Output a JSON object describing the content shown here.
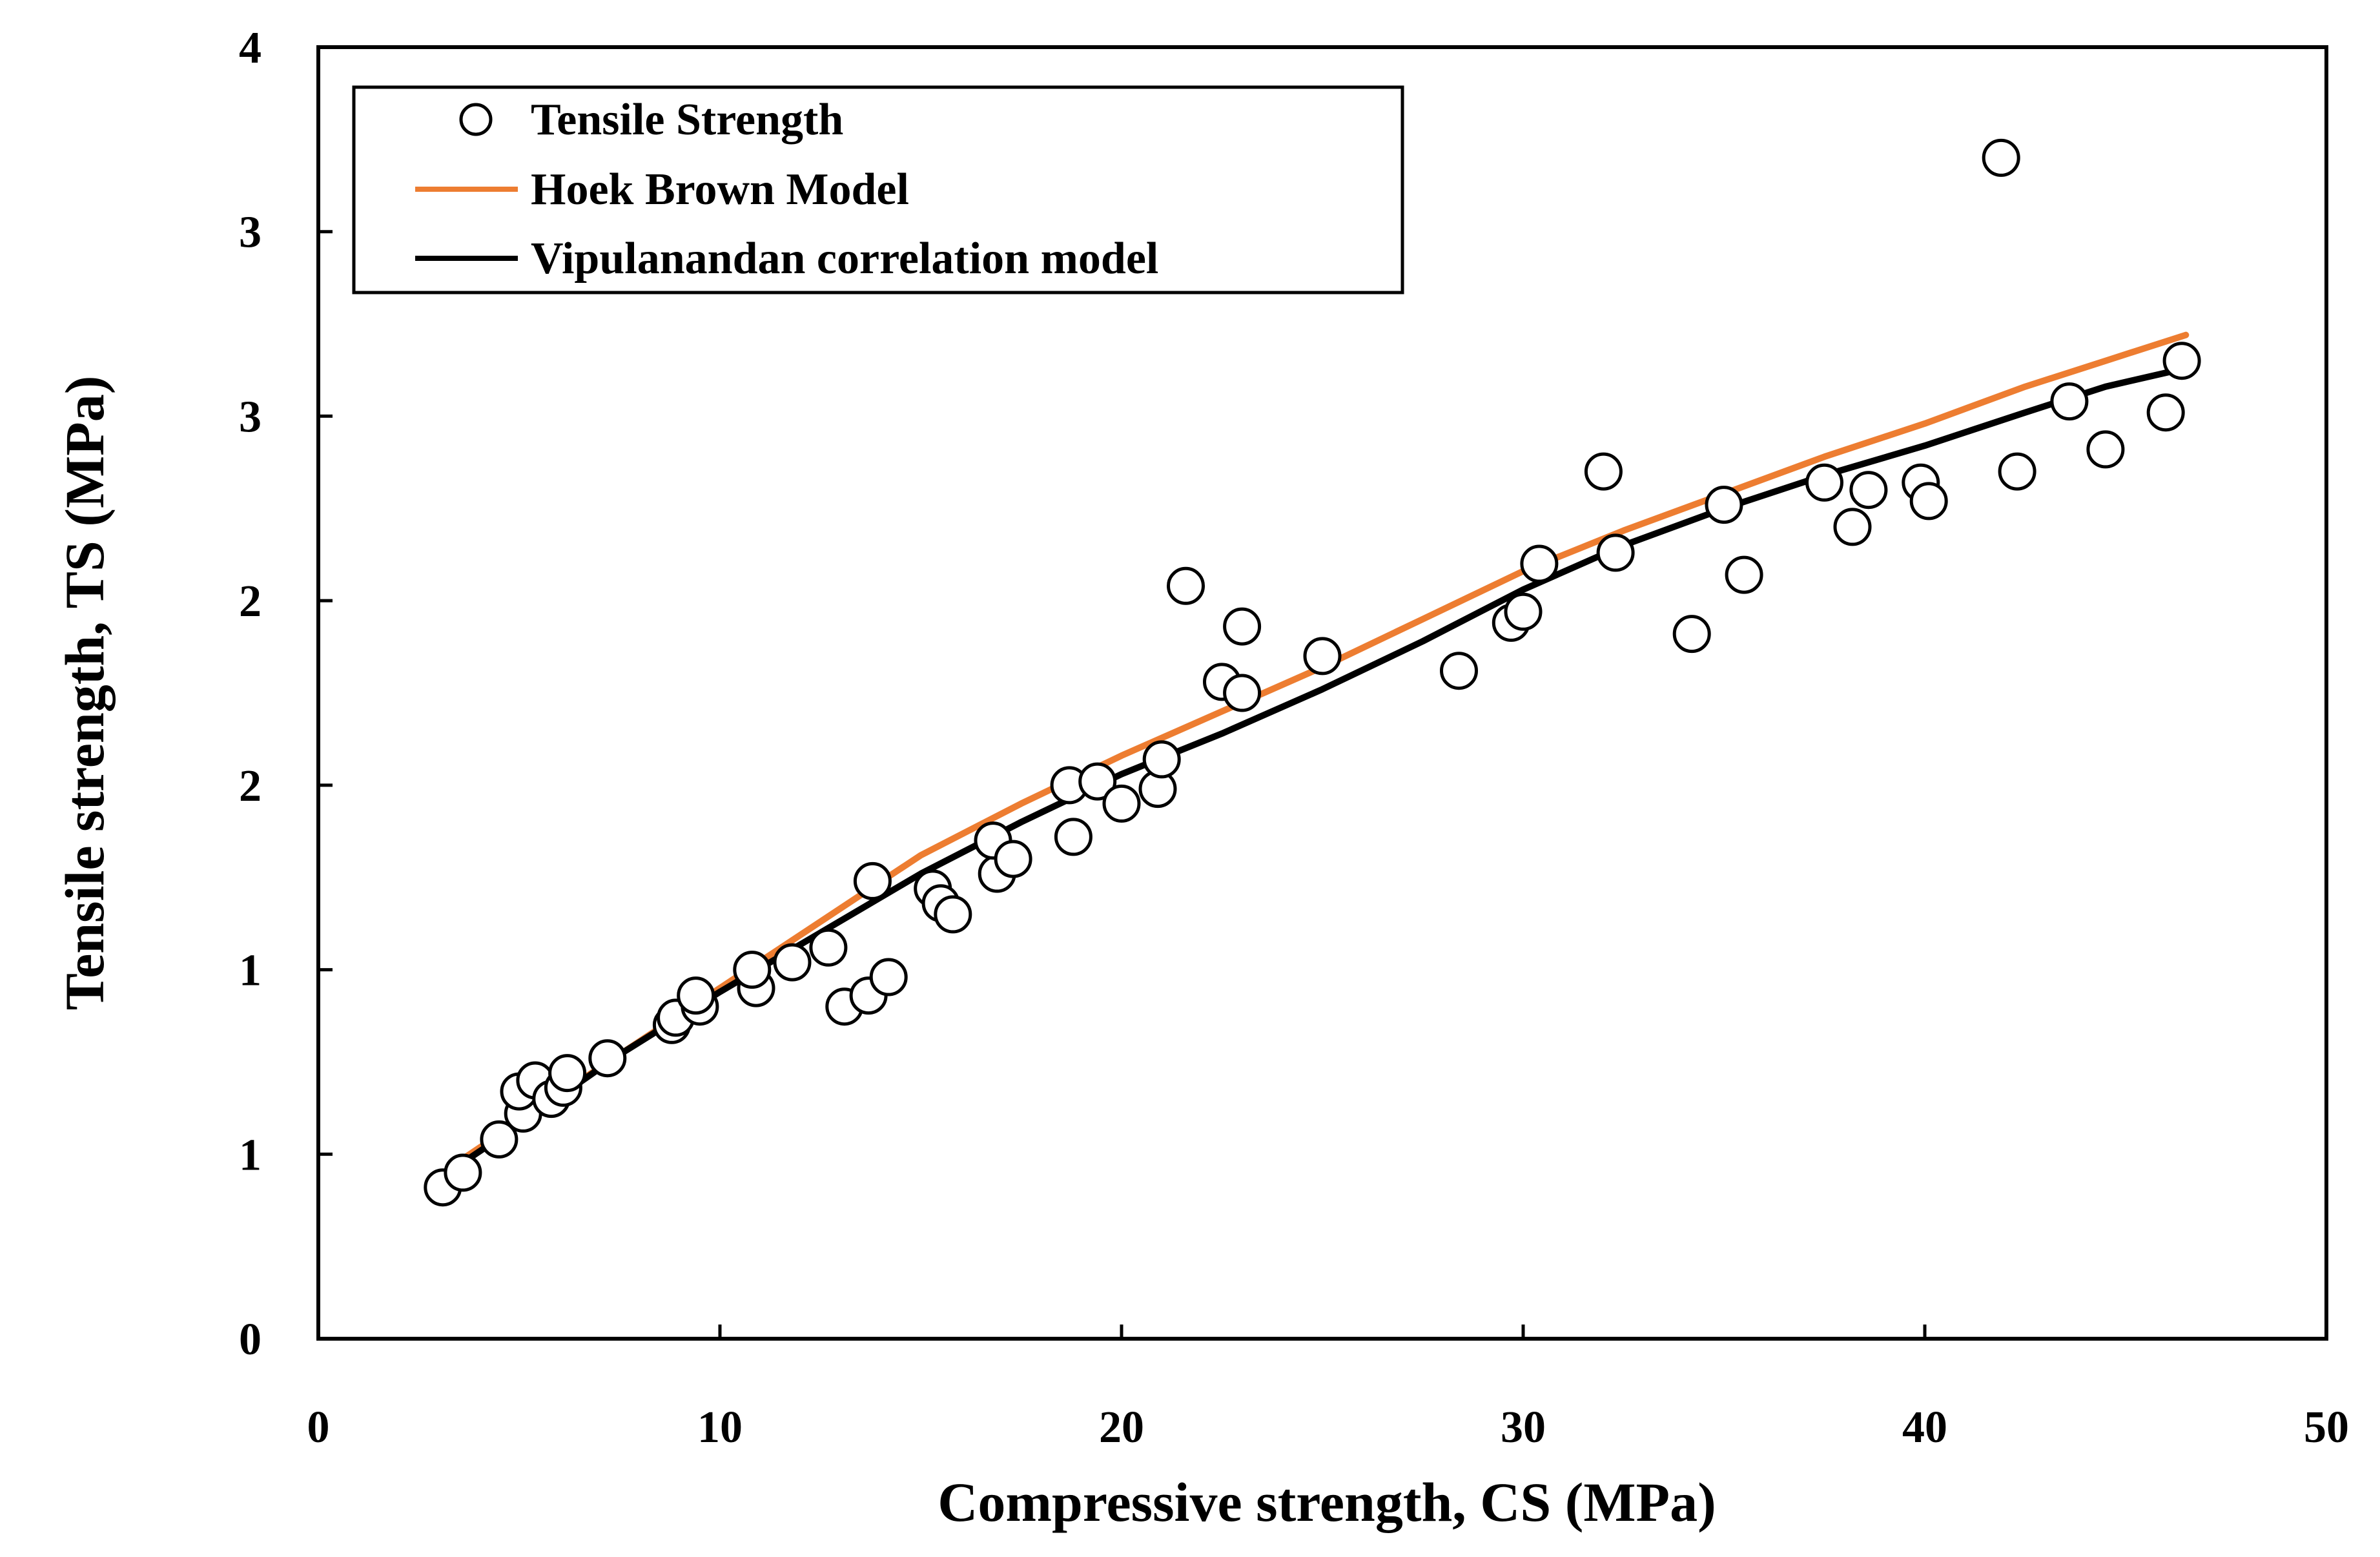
{
  "chart_data": {
    "type": "scatter",
    "xlabel": "Compressive strength, CS (MPa)",
    "ylabel": "Tensile strength, TS (MPa)",
    "xlim": [
      0,
      50
    ],
    "ylim": [
      0,
      3.5
    ],
    "grid": false,
    "legend_position": "top-left",
    "x_ticks": [
      0,
      10,
      20,
      30,
      40,
      50
    ],
    "x_tick_labels": [
      "0",
      "10",
      "20",
      "30",
      "40",
      "50"
    ],
    "y_ticks": [
      0,
      0.5,
      1,
      1.5,
      2,
      2.5,
      3,
      3.5
    ],
    "y_tick_labels": [
      "0",
      "1",
      "1",
      "2",
      "2",
      "3",
      "3",
      "4"
    ],
    "series": [
      {
        "name": "Tensile Strength",
        "kind": "markers",
        "color": "#000000",
        "fill": "#ffffff",
        "points": [
          [
            3.1,
            0.41
          ],
          [
            3.6,
            0.45
          ],
          [
            4.5,
            0.54
          ],
          [
            5.1,
            0.61
          ],
          [
            5.0,
            0.67
          ],
          [
            5.4,
            0.7
          ],
          [
            5.8,
            0.65
          ],
          [
            6.1,
            0.68
          ],
          [
            6.2,
            0.72
          ],
          [
            7.2,
            0.76
          ],
          [
            8.8,
            0.85
          ],
          [
            8.9,
            0.87
          ],
          [
            9.5,
            0.9
          ],
          [
            9.4,
            0.93
          ],
          [
            10.9,
            0.95
          ],
          [
            10.8,
            1.0
          ],
          [
            11.8,
            1.02
          ],
          [
            12.7,
            1.06
          ],
          [
            13.1,
            0.9
          ],
          [
            13.7,
            0.93
          ],
          [
            14.2,
            0.98
          ],
          [
            13.8,
            1.24
          ],
          [
            15.3,
            1.22
          ],
          [
            15.5,
            1.18
          ],
          [
            15.8,
            1.15
          ],
          [
            16.9,
            1.26
          ],
          [
            16.8,
            1.35
          ],
          [
            17.3,
            1.3
          ],
          [
            18.8,
            1.36
          ],
          [
            18.7,
            1.5
          ],
          [
            19.4,
            1.51
          ],
          [
            20.0,
            1.45
          ],
          [
            20.9,
            1.49
          ],
          [
            21.0,
            1.57
          ],
          [
            21.6,
            2.04
          ],
          [
            22.5,
            1.78
          ],
          [
            23.0,
            1.75
          ],
          [
            23.0,
            1.93
          ],
          [
            25.0,
            1.85
          ],
          [
            28.4,
            1.81
          ],
          [
            29.7,
            1.94
          ],
          [
            30.0,
            1.97
          ],
          [
            30.4,
            2.1
          ],
          [
            32.0,
            2.35
          ],
          [
            32.3,
            2.13
          ],
          [
            34.2,
            1.91
          ],
          [
            35.0,
            2.26
          ],
          [
            35.5,
            2.07
          ],
          [
            37.5,
            2.32
          ],
          [
            38.2,
            2.2
          ],
          [
            38.6,
            2.3
          ],
          [
            39.9,
            2.32
          ],
          [
            40.1,
            2.27
          ],
          [
            41.9,
            3.2
          ],
          [
            42.3,
            2.35
          ],
          [
            43.6,
            2.54
          ],
          [
            44.5,
            2.41
          ],
          [
            46.0,
            2.51
          ],
          [
            46.4,
            2.65
          ]
        ]
      },
      {
        "name": "Hoek Brown Model",
        "kind": "line",
        "color": "#ED7D31",
        "points": [
          [
            3.5,
            0.48
          ],
          [
            5,
            0.59
          ],
          [
            7.5,
            0.77
          ],
          [
            10,
            0.95
          ],
          [
            12.5,
            1.13
          ],
          [
            15,
            1.31
          ],
          [
            17.5,
            1.45
          ],
          [
            20,
            1.58
          ],
          [
            22.5,
            1.7
          ],
          [
            25,
            1.82
          ],
          [
            27.5,
            1.95
          ],
          [
            30,
            2.08
          ],
          [
            32.5,
            2.19
          ],
          [
            35,
            2.29
          ],
          [
            37.5,
            2.39
          ],
          [
            40,
            2.48
          ],
          [
            42.5,
            2.58
          ],
          [
            44.5,
            2.65
          ],
          [
            46.5,
            2.72
          ]
        ]
      },
      {
        "name": "Vipulanandan correlation model",
        "kind": "line",
        "color": "#000000",
        "points": [
          [
            3.5,
            0.47
          ],
          [
            5,
            0.58
          ],
          [
            7.5,
            0.77
          ],
          [
            10,
            0.94
          ],
          [
            12.5,
            1.1
          ],
          [
            15,
            1.26
          ],
          [
            17.5,
            1.4
          ],
          [
            20,
            1.53
          ],
          [
            22.5,
            1.64
          ],
          [
            25,
            1.76
          ],
          [
            27.5,
            1.89
          ],
          [
            30,
            2.03
          ],
          [
            32.5,
            2.15
          ],
          [
            35,
            2.25
          ],
          [
            37.5,
            2.34
          ],
          [
            40,
            2.42
          ],
          [
            42.5,
            2.51
          ],
          [
            44.5,
            2.58
          ],
          [
            46.5,
            2.63
          ]
        ]
      }
    ]
  }
}
